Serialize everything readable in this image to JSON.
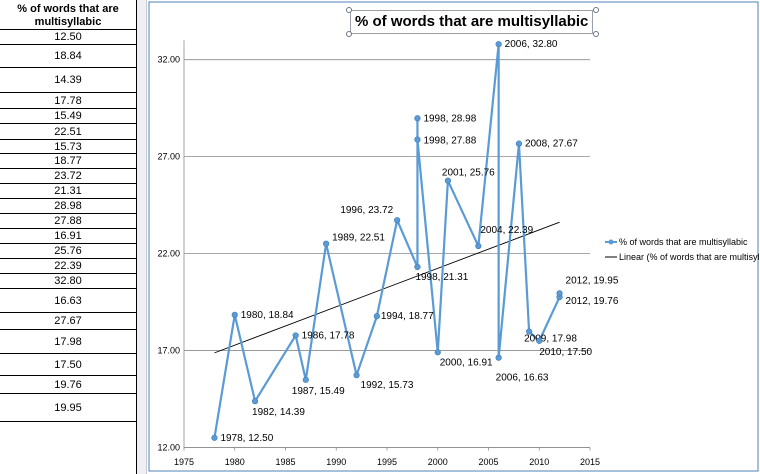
{
  "sheet": {
    "header": "% of words that are multisyllabic",
    "values": [
      "12.50",
      "18.84",
      "14.39",
      "17.78",
      "15.49",
      "22.51",
      "15.73",
      "18.77",
      "23.72",
      "21.31",
      "28.98",
      "27.88",
      "16.91",
      "25.76",
      "22.39",
      "32.80",
      "16.63",
      "27.67",
      "17.98",
      "17.50",
      "19.76",
      "19.95"
    ]
  },
  "chart_data": {
    "type": "scatter",
    "title": "% of words that are multisyllabic",
    "xlim": [
      1975,
      2015
    ],
    "ylim": [
      12.0,
      33.0
    ],
    "x_ticks": [
      "1975",
      "1980",
      "1985",
      "1990",
      "1995",
      "2000",
      "2005",
      "2010",
      "2015"
    ],
    "y_ticks": [
      "12.00",
      "17.00",
      "22.00",
      "27.00",
      "32.00"
    ],
    "grid": "horizontal",
    "legend_position": "right",
    "series": [
      {
        "name": "% of words that are multisyllabic",
        "color": "#5b9bd5",
        "points": [
          {
            "x": 1978,
            "y": 12.5,
            "label": "1978, 12.50"
          },
          {
            "x": 1980,
            "y": 18.84,
            "label": "1980, 18.84"
          },
          {
            "x": 1982,
            "y": 14.39,
            "label": "1982, 14.39"
          },
          {
            "x": 1986,
            "y": 17.78,
            "label": "1986, 17.78"
          },
          {
            "x": 1987,
            "y": 15.49,
            "label": "1987, 15.49"
          },
          {
            "x": 1989,
            "y": 22.51,
            "label": "1989, 22.51"
          },
          {
            "x": 1992,
            "y": 15.73,
            "label": "1992, 15.73"
          },
          {
            "x": 1994,
            "y": 18.77,
            "label": "1994, 18.77"
          },
          {
            "x": 1996,
            "y": 23.72,
            "label": "1996, 23.72"
          },
          {
            "x": 1998,
            "y": 21.31,
            "label": "1998, 21.31"
          },
          {
            "x": 1998,
            "y": 28.98,
            "label": "1998, 28.98"
          },
          {
            "x": 1998,
            "y": 27.88,
            "label": "1998, 27.88"
          },
          {
            "x": 2000,
            "y": 16.91,
            "label": "2000, 16.91"
          },
          {
            "x": 2001,
            "y": 25.76,
            "label": "2001, 25.76"
          },
          {
            "x": 2004,
            "y": 22.39,
            "label": "2004, 22.39"
          },
          {
            "x": 2006,
            "y": 32.8,
            "label": "2006, 32.80"
          },
          {
            "x": 2006,
            "y": 16.63,
            "label": "2006, 16.63"
          },
          {
            "x": 2008,
            "y": 27.67,
            "label": "2008, 27.67"
          },
          {
            "x": 2009,
            "y": 17.98,
            "label": "2009, 17.98"
          },
          {
            "x": 2010,
            "y": 17.5,
            "label": "2010, 17.50"
          },
          {
            "x": 2012,
            "y": 19.76,
            "label": "2012, 19.76"
          },
          {
            "x": 2012,
            "y": 19.95,
            "label": "2012, 19.95"
          }
        ]
      }
    ],
    "trendline": {
      "name": "Linear (% of words that are multisyllabic)",
      "color": "#000000",
      "x": [
        1978,
        2012
      ],
      "y": [
        16.88,
        23.62
      ]
    },
    "legend": [
      "% of words that are multisyllabic",
      "Linear (% of words that are multisyllabic)"
    ]
  }
}
